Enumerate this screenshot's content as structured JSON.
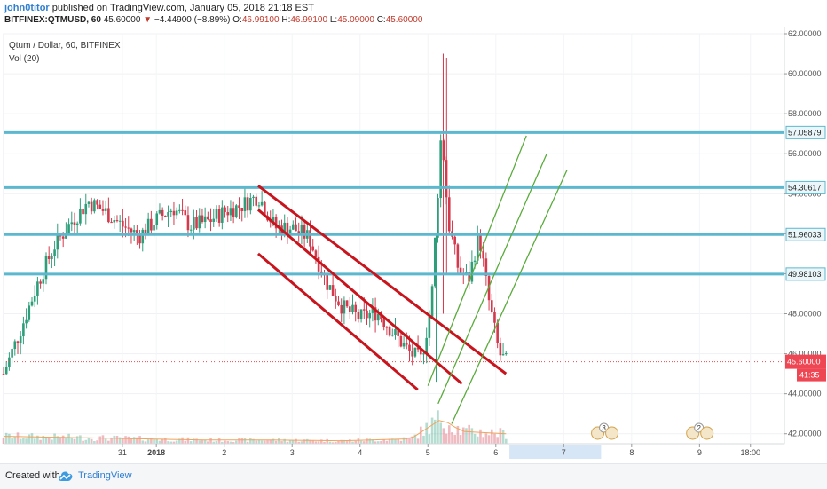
{
  "header": {
    "author": "john0titor",
    "published_text": "published on TradingView.com, January 05, 2018 21:18 EST",
    "symbol": "BITFINEX:QTMUSD, 60",
    "last": "45.60000",
    "change": "−4.44900 (−8.89%)",
    "ohlc": {
      "o_label": "O:",
      "o": "46.99100",
      "h_label": "H:",
      "h": "46.99100",
      "l_label": "L:",
      "l": "45.09000",
      "c_label": "C:",
      "c": "45.60000"
    }
  },
  "legend": {
    "title": "Qtum / Dollar, 60, BITFINEX",
    "volume": "Vol (20)"
  },
  "footer": {
    "created_with": "Created with",
    "brand": "TradingView"
  },
  "colors": {
    "up": "#2e9e7a",
    "down": "#d43a4d",
    "level": "#5bb8cf",
    "channel": "#c8141d",
    "green_channel": "#5aab3c",
    "price_tag": "#ef4653"
  },
  "chart_data": {
    "type": "candlestick",
    "ylim": [
      41.5,
      62.0
    ],
    "ticks_y": [
      42,
      44,
      46,
      48,
      50,
      52,
      54,
      56,
      58,
      60,
      62
    ],
    "tick_labels_y": [
      "42.00000",
      "44.00000",
      "46.00000",
      "48.00000",
      "50.00000",
      "52.00000",
      "54.00000",
      "56.00000",
      "58.00000",
      "60.00000",
      "62.00000"
    ],
    "x_labels": [
      "31",
      "2018",
      "2",
      "3",
      "4",
      "5",
      "6",
      "7",
      "8",
      "9",
      "18:00"
    ],
    "x_label_positions": [
      3.5,
      4.5,
      6.5,
      8.5,
      10.5,
      12.5,
      14.5,
      16.5,
      18.5,
      20.5,
      22
    ],
    "horizontal_levels": [
      57.05879,
      54.30617,
      51.96033,
      49.98103
    ],
    "last_price": 45.6,
    "price_tag": "45.60000",
    "countdown": "41:35",
    "red_channel": [
      {
        "from": [
          7.5,
          54.4
        ],
        "to": [
          14.8,
          45.0
        ]
      },
      {
        "from": [
          7.5,
          53.2
        ],
        "to": [
          13.5,
          44.5
        ]
      },
      {
        "from": [
          7.5,
          51.0
        ],
        "to": [
          12.2,
          44.2
        ]
      }
    ],
    "green_channel": [
      {
        "from": [
          12.5,
          44.4
        ],
        "to": [
          15.4,
          56.9
        ]
      },
      {
        "from": [
          12.8,
          43.5
        ],
        "to": [
          16.0,
          56.0
        ]
      },
      {
        "from": [
          13.2,
          42.5
        ],
        "to": [
          16.6,
          55.2
        ]
      }
    ],
    "price_path": [
      [
        0,
        45.0
      ],
      [
        0.5,
        47.2
      ],
      [
        1,
        49.5
      ],
      [
        1.5,
        51.4
      ],
      [
        2,
        52.6
      ],
      [
        2.5,
        53.6
      ],
      [
        3,
        53.1
      ],
      [
        3.5,
        52.4
      ],
      [
        4,
        51.9
      ],
      [
        4.5,
        52.7
      ],
      [
        5,
        53.3
      ],
      [
        5.5,
        52.4
      ],
      [
        6,
        52.6
      ],
      [
        6.5,
        53.1
      ],
      [
        7,
        53.4
      ],
      [
        7.5,
        53.9
      ],
      [
        8,
        52.3
      ],
      [
        8.5,
        52.3
      ],
      [
        9,
        51.8
      ],
      [
        9.5,
        49.6
      ],
      [
        10,
        48.3
      ],
      [
        10.5,
        47.8
      ],
      [
        11,
        48.1
      ],
      [
        11.5,
        47.0
      ],
      [
        12,
        46.0
      ],
      [
        12.3,
        45.7
      ],
      [
        12.6,
        48.4
      ],
      [
        12.9,
        57.3
      ],
      [
        13.1,
        52.6
      ],
      [
        13.4,
        50.2
      ],
      [
        13.7,
        49.7
      ],
      [
        14,
        52.0
      ],
      [
        14.3,
        48.6
      ],
      [
        14.6,
        46.0
      ],
      [
        14.8,
        45.6
      ]
    ],
    "volume_path": [
      [
        0,
        0.3
      ],
      [
        2,
        0.25
      ],
      [
        4,
        0.2
      ],
      [
        6,
        0.15
      ],
      [
        8,
        0.15
      ],
      [
        10,
        0.12
      ],
      [
        12,
        0.2
      ],
      [
        12.9,
        1.0
      ],
      [
        13.5,
        0.5
      ],
      [
        14.8,
        0.4
      ]
    ],
    "events": [
      {
        "x": 17.5,
        "label": "3"
      },
      {
        "x": 20.3,
        "label": "2"
      }
    ]
  }
}
